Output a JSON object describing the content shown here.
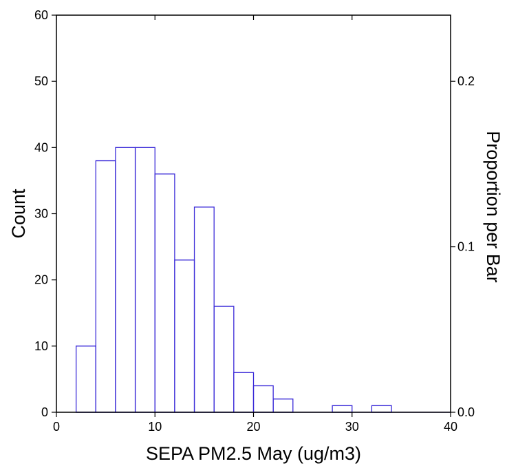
{
  "chart_data": {
    "type": "bar",
    "title": "",
    "xlabel": "SEPA PM2.5 May (ug/m3)",
    "ylabel": "Count",
    "y2label": "Proportion per Bar",
    "xlim": [
      0,
      40
    ],
    "ylim": [
      0,
      60
    ],
    "y2lim": [
      0.0,
      0.24
    ],
    "bin_width": 2,
    "bins": [
      {
        "x0": 2,
        "x1": 4,
        "count": 10
      },
      {
        "x0": 4,
        "x1": 6,
        "count": 38
      },
      {
        "x0": 6,
        "x1": 8,
        "count": 40
      },
      {
        "x0": 8,
        "x1": 10,
        "count": 40
      },
      {
        "x0": 10,
        "x1": 12,
        "count": 36
      },
      {
        "x0": 12,
        "x1": 14,
        "count": 23
      },
      {
        "x0": 14,
        "x1": 16,
        "count": 31
      },
      {
        "x0": 16,
        "x1": 18,
        "count": 16
      },
      {
        "x0": 18,
        "x1": 20,
        "count": 6
      },
      {
        "x0": 20,
        "x1": 22,
        "count": 4
      },
      {
        "x0": 22,
        "x1": 24,
        "count": 2
      },
      {
        "x0": 28,
        "x1": 30,
        "count": 1
      },
      {
        "x0": 32,
        "x1": 34,
        "count": 1
      }
    ],
    "x_ticks": [
      "0",
      "10",
      "20",
      "30",
      "40"
    ],
    "y_ticks": [
      "0",
      "10",
      "20",
      "30",
      "40",
      "50",
      "60"
    ],
    "y2_ticks": [
      "0.0",
      "0.1",
      "0.2"
    ],
    "grid": false,
    "bar_color": "#3a2ad8"
  }
}
